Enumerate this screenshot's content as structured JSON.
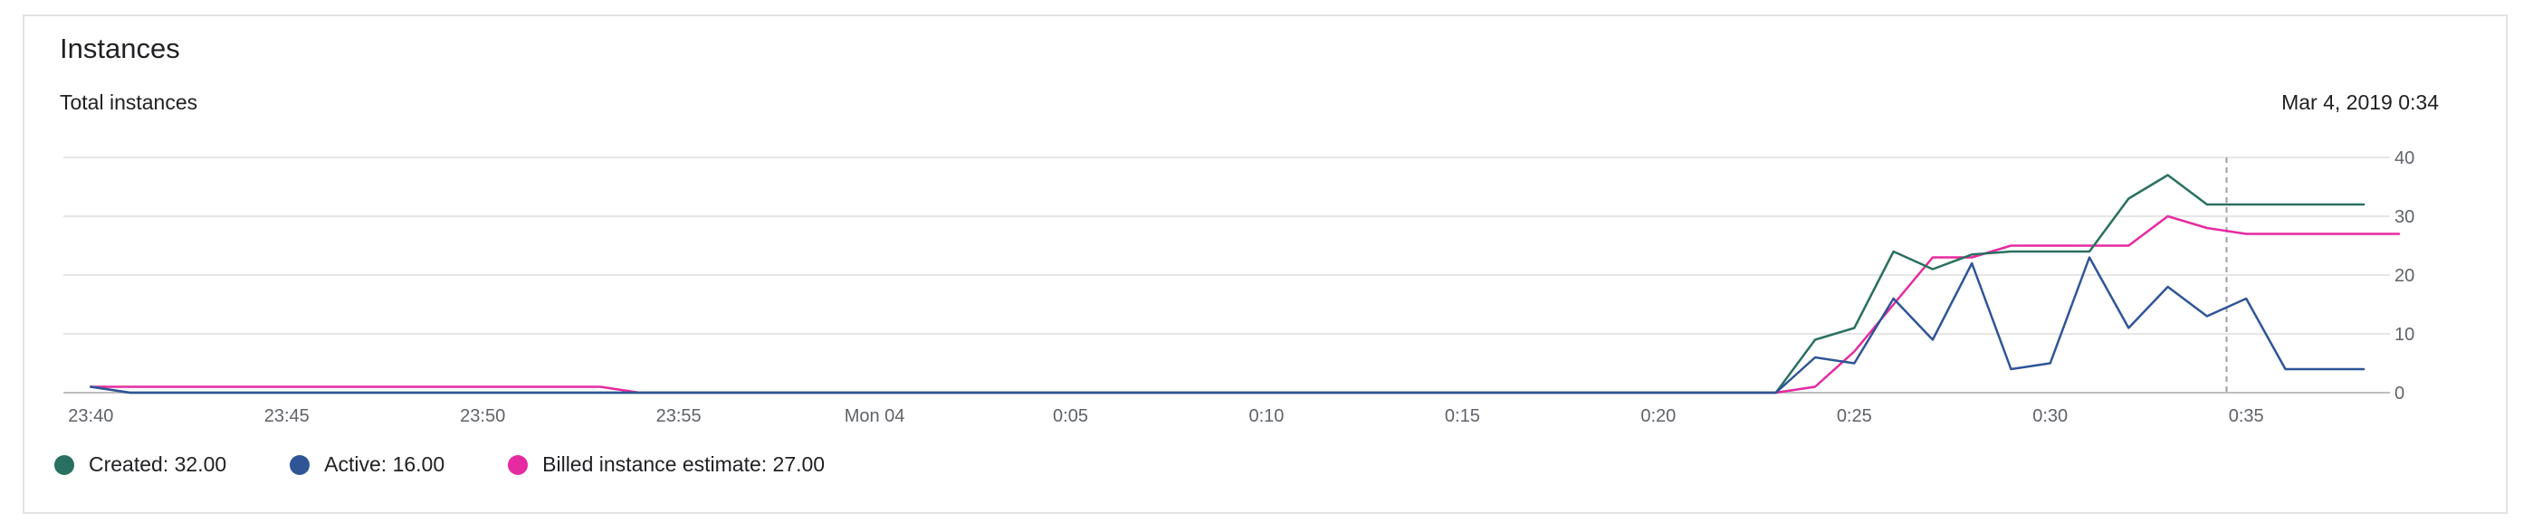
{
  "card": {
    "title": "Instances"
  },
  "chart_data": {
    "type": "line",
    "title": "Total instances",
    "timestamp": "Mar 4, 2019 0:34",
    "x_unit": "minutes",
    "xlim": [
      -20.7,
      38.9
    ],
    "ylim": [
      0,
      40
    ],
    "y_ticks": [
      0,
      10,
      20,
      30,
      40
    ],
    "x_ticks": [
      {
        "t": -20,
        "label": "23:40"
      },
      {
        "t": -15,
        "label": "23:45"
      },
      {
        "t": -10,
        "label": "23:50"
      },
      {
        "t": -5,
        "label": "23:55"
      },
      {
        "t": 0,
        "label": "Mon 04"
      },
      {
        "t": 5,
        "label": "0:05"
      },
      {
        "t": 10,
        "label": "0:10"
      },
      {
        "t": 15,
        "label": "0:15"
      },
      {
        "t": 20,
        "label": "0:20"
      },
      {
        "t": 25,
        "label": "0:25"
      },
      {
        "t": 30,
        "label": "0:30"
      },
      {
        "t": 35,
        "label": "0:35"
      }
    ],
    "cursor_t": 34.5,
    "grid": true,
    "legend_position": "bottom-left",
    "series": [
      {
        "name": "Created",
        "legend_value": "32.00",
        "color": "#2a7060",
        "points": [
          [
            -20,
            1
          ],
          [
            -19,
            0
          ],
          [
            23,
            0
          ],
          [
            24,
            9
          ],
          [
            25,
            11
          ],
          [
            26,
            24
          ],
          [
            27,
            21
          ],
          [
            28,
            23.5
          ],
          [
            29,
            24
          ],
          [
            30,
            24
          ],
          [
            31,
            24
          ],
          [
            32,
            33
          ],
          [
            33,
            37
          ],
          [
            34,
            32
          ],
          [
            35,
            32
          ],
          [
            36,
            32
          ],
          [
            37,
            32
          ],
          [
            38,
            32
          ]
        ]
      },
      {
        "name": "Active",
        "legend_value": "16.00",
        "color": "#2f5597",
        "points": [
          [
            -20,
            1
          ],
          [
            -19,
            0
          ],
          [
            23,
            0
          ],
          [
            24,
            6
          ],
          [
            25,
            5
          ],
          [
            26,
            16
          ],
          [
            27,
            9
          ],
          [
            28,
            22
          ],
          [
            29,
            4
          ],
          [
            30,
            5
          ],
          [
            31,
            23
          ],
          [
            32,
            11
          ],
          [
            33,
            18
          ],
          [
            34,
            13
          ],
          [
            35,
            16
          ],
          [
            36,
            4
          ],
          [
            37,
            4
          ],
          [
            38,
            4
          ]
        ]
      },
      {
        "name": "Billed instance estimate",
        "legend_value": "27.00",
        "color": "#e62a9f",
        "points": [
          [
            -20,
            1
          ],
          [
            -7,
            1
          ],
          [
            -6,
            0
          ],
          [
            23,
            0
          ],
          [
            24,
            1
          ],
          [
            25,
            7
          ],
          [
            26,
            15
          ],
          [
            27,
            23
          ],
          [
            28,
            23
          ],
          [
            29,
            25
          ],
          [
            30,
            25
          ],
          [
            31,
            25
          ],
          [
            32,
            25
          ],
          [
            33,
            30
          ],
          [
            34,
            28
          ],
          [
            35,
            27
          ],
          [
            36,
            27
          ],
          [
            37,
            27
          ],
          [
            38,
            27
          ],
          [
            38.9,
            27
          ]
        ]
      }
    ]
  },
  "legend": {
    "items": [
      {
        "label": "Created: 32.00",
        "color": "#2a7060"
      },
      {
        "label": "Active: 16.00",
        "color": "#2f5597"
      },
      {
        "label": "Billed instance estimate: 27.00",
        "color": "#e62a9f"
      }
    ]
  }
}
